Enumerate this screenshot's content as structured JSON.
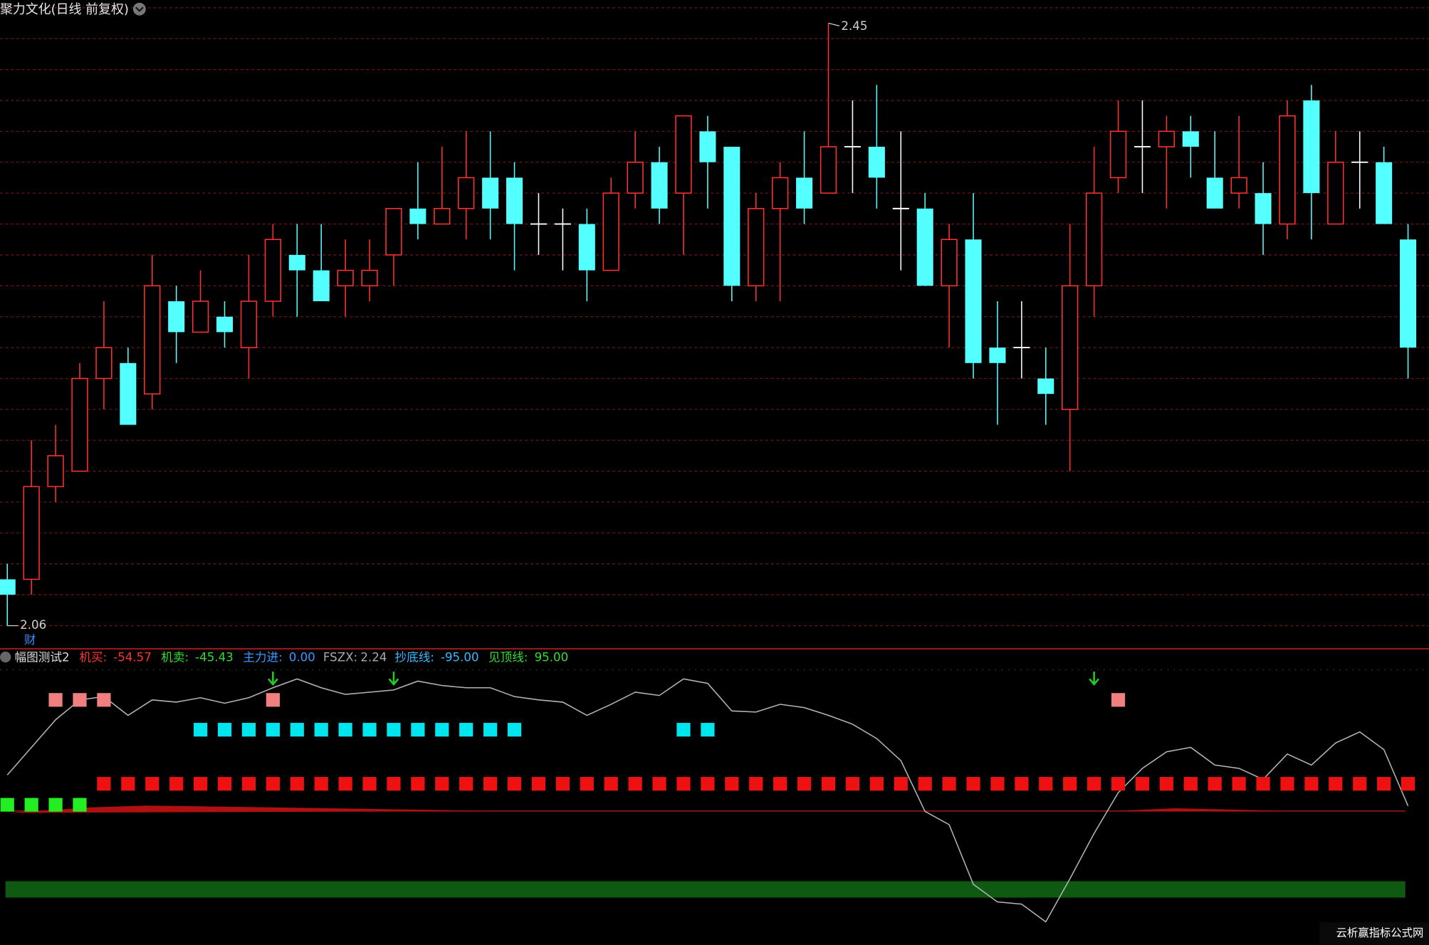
{
  "chart_data": [
    {
      "type": "candlestick",
      "title": "聚力文化(日线 前复权)",
      "badge": "财",
      "max_price_label": 2.45,
      "min_price_label": 2.06,
      "ylim": [
        2.045,
        2.465
      ],
      "grid_lines": [
        2.06,
        2.08,
        2.1,
        2.12,
        2.14,
        2.16,
        2.18,
        2.2,
        2.22,
        2.24,
        2.26,
        2.28,
        2.3,
        2.32,
        2.34,
        2.36,
        2.38,
        2.4,
        2.42,
        2.44,
        2.46
      ],
      "up_color": "#ff3232",
      "down_color": "#54ffff",
      "flat_color": "#ffffff",
      "grid_color": "#6a1616",
      "open": [
        2.09,
        2.09,
        2.15,
        2.16,
        2.22,
        2.23,
        2.21,
        2.27,
        2.25,
        2.26,
        2.24,
        2.27,
        2.3,
        2.29,
        2.28,
        2.28,
        2.3,
        2.33,
        2.32,
        2.33,
        2.35,
        2.35,
        2.32,
        2.32,
        2.32,
        2.29,
        2.34,
        2.36,
        2.34,
        2.38,
        2.37,
        2.28,
        2.33,
        2.35,
        2.34,
        2.37,
        2.37,
        2.33,
        2.33,
        2.28,
        2.31,
        2.24,
        2.24,
        2.22,
        2.2,
        2.28,
        2.35,
        2.37,
        2.37,
        2.38,
        2.35,
        2.34,
        2.34,
        2.32,
        2.4,
        2.32,
        2.36,
        2.36,
        2.31
      ],
      "high": [
        2.1,
        2.18,
        2.19,
        2.23,
        2.27,
        2.24,
        2.3,
        2.28,
        2.29,
        2.27,
        2.3,
        2.32,
        2.32,
        2.32,
        2.31,
        2.31,
        2.33,
        2.36,
        2.37,
        2.38,
        2.38,
        2.36,
        2.34,
        2.33,
        2.33,
        2.35,
        2.38,
        2.37,
        2.39,
        2.39,
        2.37,
        2.34,
        2.36,
        2.38,
        2.45,
        2.4,
        2.41,
        2.38,
        2.34,
        2.32,
        2.34,
        2.27,
        2.27,
        2.24,
        2.32,
        2.37,
        2.4,
        2.4,
        2.39,
        2.39,
        2.38,
        2.39,
        2.36,
        2.4,
        2.41,
        2.38,
        2.38,
        2.37,
        2.32
      ],
      "low": [
        2.06,
        2.08,
        2.14,
        2.16,
        2.2,
        2.19,
        2.2,
        2.23,
        2.25,
        2.24,
        2.22,
        2.26,
        2.26,
        2.27,
        2.26,
        2.27,
        2.28,
        2.31,
        2.32,
        2.31,
        2.31,
        2.29,
        2.3,
        2.29,
        2.27,
        2.29,
        2.33,
        2.32,
        2.3,
        2.33,
        2.27,
        2.27,
        2.27,
        2.32,
        2.34,
        2.34,
        2.33,
        2.29,
        2.28,
        2.24,
        2.22,
        2.19,
        2.22,
        2.19,
        2.16,
        2.26,
        2.34,
        2.34,
        2.33,
        2.35,
        2.33,
        2.33,
        2.3,
        2.31,
        2.31,
        2.32,
        2.33,
        2.32,
        2.22
      ],
      "close": [
        2.08,
        2.15,
        2.17,
        2.22,
        2.24,
        2.19,
        2.28,
        2.25,
        2.27,
        2.25,
        2.27,
        2.31,
        2.29,
        2.27,
        2.29,
        2.29,
        2.33,
        2.32,
        2.33,
        2.35,
        2.33,
        2.32,
        2.32,
        2.32,
        2.29,
        2.34,
        2.36,
        2.33,
        2.39,
        2.36,
        2.28,
        2.33,
        2.35,
        2.33,
        2.37,
        2.37,
        2.35,
        2.33,
        2.28,
        2.31,
        2.23,
        2.23,
        2.24,
        2.21,
        2.28,
        2.34,
        2.38,
        2.37,
        2.38,
        2.37,
        2.33,
        2.35,
        2.32,
        2.39,
        2.34,
        2.36,
        2.36,
        2.32,
        2.24
      ]
    },
    {
      "type": "line",
      "title": "幅图测试2",
      "readouts": [
        {
          "label": "机买:",
          "value": -54.57,
          "color": "#ff3333"
        },
        {
          "label": "机卖:",
          "value": -45.43,
          "color": "#33dd33"
        },
        {
          "label": "主力进:",
          "value": 0,
          "value_label": "0.00",
          "color": "#3399ff"
        },
        {
          "label": "FSZX:",
          "value": 2.24,
          "color": "#aaaaaa"
        },
        {
          "label": "抄底线:",
          "value": -95,
          "value_label": "-95.00",
          "color": "#33bbff"
        },
        {
          "label": "见顶线:",
          "value": 95,
          "value_label": "95.00",
          "color": "#33dd33"
        }
      ],
      "ylim": [
        -130,
        130
      ],
      "series": [
        {
          "color": "#b4b4b4",
          "values": [
            24,
            49,
            74,
            92,
            95,
            78,
            92,
            90,
            94,
            89,
            94,
            103,
            111,
            103,
            97,
            99,
            101,
            109,
            105,
            103,
            103,
            95,
            92,
            90,
            78,
            88,
            99,
            96,
            111,
            107,
            82,
            81,
            88,
            85,
            78,
            70,
            57,
            37,
            -9,
            -21,
            -75,
            -91,
            -93,
            -109,
            -70,
            -29,
            8,
            30,
            45,
            49,
            33,
            30,
            20,
            43,
            33,
            53,
            63,
            47,
            -4
          ]
        }
      ],
      "signals": [
        {
          "shape": "arrow",
          "color": "#22cc22",
          "level": 111,
          "x": [
            11,
            16,
            45
          ]
        },
        {
          "shape": "square",
          "color": "#f08080",
          "level": 92,
          "x": [
            2,
            3,
            4,
            11,
            46
          ]
        },
        {
          "shape": "square",
          "color": "#00e5ee",
          "level": 65,
          "x": [
            8,
            9,
            10,
            11,
            12,
            13,
            14,
            15,
            16,
            17,
            18,
            19,
            20,
            21,
            28,
            29
          ]
        },
        {
          "shape": "square",
          "color": "#ee1111",
          "level": 16,
          "x": [
            4,
            5,
            6,
            7,
            8,
            9,
            10,
            11,
            12,
            13,
            14,
            15,
            16,
            17,
            18,
            19,
            20,
            21,
            22,
            23,
            24,
            25,
            26,
            27,
            28,
            29,
            30,
            31,
            32,
            33,
            34,
            35,
            36,
            37,
            38,
            39,
            40,
            41,
            42,
            43,
            44,
            45,
            46,
            47,
            48,
            49,
            50,
            51,
            52,
            53,
            54,
            55,
            56,
            57,
            58
          ]
        },
        {
          "shape": "square",
          "color": "#22ee22",
          "level": -3,
          "x": [
            0,
            1,
            2,
            3
          ]
        }
      ]
    },
    {
      "type": "watermark",
      "text": "云析赢指标公式网"
    }
  ]
}
